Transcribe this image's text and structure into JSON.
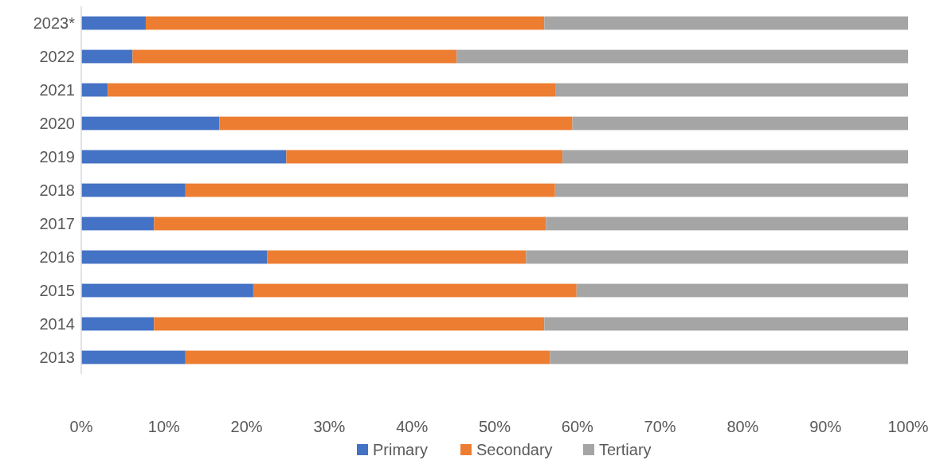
{
  "chart_data": {
    "type": "bar",
    "orientation": "horizontal",
    "stacked": true,
    "categories": [
      "2023*",
      "2022",
      "2021",
      "2020",
      "2019",
      "2018",
      "2017",
      "2016",
      "2015",
      "2014",
      "2013"
    ],
    "series": [
      {
        "name": "Primary",
        "color": "#4472c4",
        "values": [
          7.8,
          6.2,
          3.2,
          16.7,
          24.8,
          12.6,
          8.8,
          22.5,
          20.8,
          8.8,
          12.6
        ]
      },
      {
        "name": "Secondary",
        "color": "#ed7d31",
        "values": [
          48.2,
          39.2,
          54.2,
          42.7,
          33.4,
          44.7,
          47.4,
          31.3,
          39.1,
          47.2,
          44.1
        ]
      },
      {
        "name": "Tertiary",
        "color": "#a5a5a5",
        "values": [
          44.0,
          54.6,
          42.6,
          40.6,
          41.8,
          42.7,
          43.8,
          46.2,
          40.1,
          44.0,
          43.3
        ]
      }
    ],
    "xlim": [
      0,
      100
    ],
    "xticks": [
      {
        "value": 0,
        "label": "0%"
      },
      {
        "value": 10,
        "label": "10%"
      },
      {
        "value": 20,
        "label": "20%"
      },
      {
        "value": 30,
        "label": "30%"
      },
      {
        "value": 40,
        "label": "40%"
      },
      {
        "value": 50,
        "label": "50%"
      },
      {
        "value": 60,
        "label": "60%"
      },
      {
        "value": 70,
        "label": "70%"
      },
      {
        "value": 80,
        "label": "80%"
      },
      {
        "value": 90,
        "label": "90%"
      },
      {
        "value": 100,
        "label": "100%"
      }
    ],
    "grid": false,
    "legend": "bottom"
  }
}
